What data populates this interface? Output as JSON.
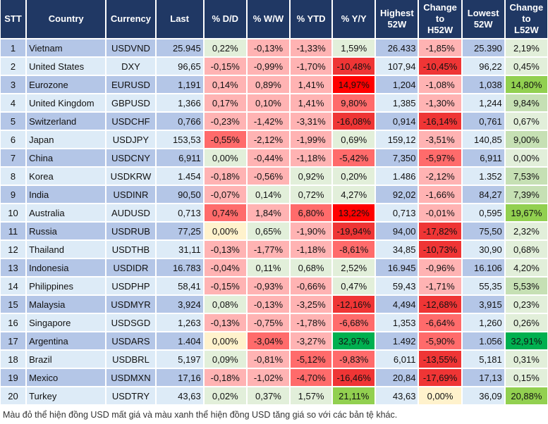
{
  "headers": [
    "STT",
    "Country",
    "Currency",
    "Last",
    "% D/D",
    "% W/W",
    "% YTD",
    "% Y/Y",
    "Highest\n52W",
    "Change\nto\nH52W",
    "Lowest\n52W",
    "Change\nto\nL52W"
  ],
  "colors": {
    "g1": "#e2efda",
    "g2": "#c6e0b4",
    "g3": "#92d050",
    "g4": "#00b050",
    "r1": "#ffb3b3",
    "r2": "#ff6b6b",
    "r3": "#ef3535",
    "r4": "#ff0000",
    "y": "#fff2cc",
    "header": "#203864"
  },
  "rows": [
    {
      "stt": "1",
      "country": "Vietnam",
      "currency": "USDVND",
      "last": "25.945",
      "dd": [
        "0,22%",
        "g1"
      ],
      "ww": [
        "-0,13%",
        "r1"
      ],
      "ytd": [
        "-1,33%",
        "r1"
      ],
      "yy": [
        "1,59%",
        "g1"
      ],
      "high": "26.433",
      "ch": [
        "-1,85%",
        "r1"
      ],
      "low": "25.390",
      "cl": [
        "2,19%",
        "g1"
      ]
    },
    {
      "stt": "2",
      "country": "United States",
      "currency": "DXY",
      "last": "96,65",
      "dd": [
        "-0,15%",
        "r1"
      ],
      "ww": [
        "-0,99%",
        "r1"
      ],
      "ytd": [
        "-1,70%",
        "r1"
      ],
      "yy": [
        "-10,48%",
        "r3"
      ],
      "high": "107,94",
      "ch": [
        "-10,45%",
        "r3"
      ],
      "low": "96,22",
      "cl": [
        "0,45%",
        "g1"
      ]
    },
    {
      "stt": "3",
      "country": "Eurozone",
      "currency": "EURUSD",
      "last": "1,191",
      "dd": [
        "0,14%",
        "r1"
      ],
      "ww": [
        "0,89%",
        "r1"
      ],
      "ytd": [
        "1,41%",
        "r1"
      ],
      "yy": [
        "14,97%",
        "r4"
      ],
      "high": "1,204",
      "ch": [
        "-1,08%",
        "r1"
      ],
      "low": "1,038",
      "cl": [
        "14,80%",
        "g3"
      ]
    },
    {
      "stt": "4",
      "country": "United Kingdom",
      "currency": "GBPUSD",
      "last": "1,366",
      "dd": [
        "0,17%",
        "r1"
      ],
      "ww": [
        "0,10%",
        "r1"
      ],
      "ytd": [
        "1,41%",
        "r1"
      ],
      "yy": [
        "9,80%",
        "r2"
      ],
      "high": "1,385",
      "ch": [
        "-1,30%",
        "r1"
      ],
      "low": "1,244",
      "cl": [
        "9,84%",
        "g2"
      ]
    },
    {
      "stt": "5",
      "country": "Switzerland",
      "currency": "USDCHF",
      "last": "0,766",
      "dd": [
        "-0,23%",
        "r1"
      ],
      "ww": [
        "-1,42%",
        "r1"
      ],
      "ytd": [
        "-3,31%",
        "r1"
      ],
      "yy": [
        "-16,08%",
        "r3"
      ],
      "high": "0,914",
      "ch": [
        "-16,14%",
        "r3"
      ],
      "low": "0,761",
      "cl": [
        "0,67%",
        "g1"
      ]
    },
    {
      "stt": "6",
      "country": "Japan",
      "currency": "USDJPY",
      "last": "153,53",
      "dd": [
        "-0,55%",
        "r2"
      ],
      "ww": [
        "-2,12%",
        "r1"
      ],
      "ytd": [
        "-1,99%",
        "r1"
      ],
      "yy": [
        "0,69%",
        "g1"
      ],
      "high": "159,12",
      "ch": [
        "-3,51%",
        "r1"
      ],
      "low": "140,85",
      "cl": [
        "9,00%",
        "g2"
      ]
    },
    {
      "stt": "7",
      "country": "China",
      "currency": "USDCNY",
      "last": "6,911",
      "dd": [
        "0,00%",
        "g1"
      ],
      "ww": [
        "-0,44%",
        "r1"
      ],
      "ytd": [
        "-1,18%",
        "r1"
      ],
      "yy": [
        "-5,42%",
        "r2"
      ],
      "high": "7,350",
      "ch": [
        "-5,97%",
        "r2"
      ],
      "low": "6,911",
      "cl": [
        "0,00%",
        "g1"
      ]
    },
    {
      "stt": "8",
      "country": "Korea",
      "currency": "USDKRW",
      "last": "1.454",
      "dd": [
        "-0,18%",
        "r1"
      ],
      "ww": [
        "-0,56%",
        "r1"
      ],
      "ytd": [
        "0,92%",
        "g1"
      ],
      "yy": [
        "0,20%",
        "g1"
      ],
      "high": "1.486",
      "ch": [
        "-2,12%",
        "r1"
      ],
      "low": "1.352",
      "cl": [
        "7,53%",
        "g2"
      ]
    },
    {
      "stt": "9",
      "country": "India",
      "currency": "USDINR",
      "last": "90,50",
      "dd": [
        "-0,07%",
        "r1"
      ],
      "ww": [
        "0,14%",
        "g1"
      ],
      "ytd": [
        "0,72%",
        "g1"
      ],
      "yy": [
        "4,27%",
        "g1"
      ],
      "high": "92,02",
      "ch": [
        "-1,66%",
        "r1"
      ],
      "low": "84,27",
      "cl": [
        "7,39%",
        "g2"
      ]
    },
    {
      "stt": "10",
      "country": "Australia",
      "currency": "AUDUSD",
      "last": "0,713",
      "dd": [
        "0,74%",
        "r2"
      ],
      "ww": [
        "1,84%",
        "r1"
      ],
      "ytd": [
        "6,80%",
        "r2"
      ],
      "yy": [
        "13,22%",
        "r4"
      ],
      "high": "0,713",
      "ch": [
        "-0,01%",
        "r1"
      ],
      "low": "0,595",
      "cl": [
        "19,67%",
        "g3"
      ]
    },
    {
      "stt": "11",
      "country": "Russia",
      "currency": "USDRUB",
      "last": "77,25",
      "dd": [
        "0,00%",
        "y"
      ],
      "ww": [
        "0,65%",
        "g1"
      ],
      "ytd": [
        "-1,90%",
        "r1"
      ],
      "yy": [
        "-19,94%",
        "r3"
      ],
      "high": "94,00",
      "ch": [
        "-17,82%",
        "r3"
      ],
      "low": "75,50",
      "cl": [
        "2,32%",
        "g1"
      ]
    },
    {
      "stt": "12",
      "country": "Thailand",
      "currency": "USDTHB",
      "last": "31,11",
      "dd": [
        "-0,13%",
        "r1"
      ],
      "ww": [
        "-1,77%",
        "r1"
      ],
      "ytd": [
        "-1,18%",
        "r1"
      ],
      "yy": [
        "-8,61%",
        "r2"
      ],
      "high": "34,85",
      "ch": [
        "-10,73%",
        "r3"
      ],
      "low": "30,90",
      "cl": [
        "0,68%",
        "g1"
      ]
    },
    {
      "stt": "13",
      "country": "Indonesia",
      "currency": "USDIDR",
      "last": "16.783",
      "dd": [
        "-0,04%",
        "r1"
      ],
      "ww": [
        "0,11%",
        "g1"
      ],
      "ytd": [
        "0,68%",
        "g1"
      ],
      "yy": [
        "2,52%",
        "g1"
      ],
      "high": "16.945",
      "ch": [
        "-0,96%",
        "r1"
      ],
      "low": "16.106",
      "cl": [
        "4,20%",
        "g1"
      ]
    },
    {
      "stt": "14",
      "country": "Philippines",
      "currency": "USDPHP",
      "last": "58,41",
      "dd": [
        "-0,15%",
        "r1"
      ],
      "ww": [
        "-0,93%",
        "r1"
      ],
      "ytd": [
        "-0,66%",
        "r1"
      ],
      "yy": [
        "0,47%",
        "g1"
      ],
      "high": "59,43",
      "ch": [
        "-1,71%",
        "r1"
      ],
      "low": "55,35",
      "cl": [
        "5,53%",
        "g2"
      ]
    },
    {
      "stt": "15",
      "country": "Malaysia",
      "currency": "USDMYR",
      "last": "3,924",
      "dd": [
        "0,08%",
        "g1"
      ],
      "ww": [
        "-0,13%",
        "r1"
      ],
      "ytd": [
        "-3,25%",
        "r1"
      ],
      "yy": [
        "-12,16%",
        "r3"
      ],
      "high": "4,494",
      "ch": [
        "-12,68%",
        "r3"
      ],
      "low": "3,915",
      "cl": [
        "0,23%",
        "g1"
      ]
    },
    {
      "stt": "16",
      "country": "Singapore",
      "currency": "USDSGD",
      "last": "1,263",
      "dd": [
        "-0,13%",
        "r1"
      ],
      "ww": [
        "-0,75%",
        "r1"
      ],
      "ytd": [
        "-1,78%",
        "r1"
      ],
      "yy": [
        "-6,68%",
        "r2"
      ],
      "high": "1,353",
      "ch": [
        "-6,64%",
        "r2"
      ],
      "low": "1,260",
      "cl": [
        "0,26%",
        "g1"
      ]
    },
    {
      "stt": "17",
      "country": "Argentina",
      "currency": "USDARS",
      "last": "1.404",
      "dd": [
        "0,00%",
        "y"
      ],
      "ww": [
        "-3,04%",
        "r2"
      ],
      "ytd": [
        "-3,27%",
        "r1"
      ],
      "yy": [
        "32,97%",
        "g4"
      ],
      "high": "1.492",
      "ch": [
        "-5,90%",
        "r2"
      ],
      "low": "1.056",
      "cl": [
        "32,91%",
        "g4"
      ]
    },
    {
      "stt": "18",
      "country": "Brazil",
      "currency": "USDBRL",
      "last": "5,197",
      "dd": [
        "0,09%",
        "g1"
      ],
      "ww": [
        "-0,81%",
        "r1"
      ],
      "ytd": [
        "-5,12%",
        "r2"
      ],
      "yy": [
        "-9,83%",
        "r2"
      ],
      "high": "6,011",
      "ch": [
        "-13,55%",
        "r3"
      ],
      "low": "5,181",
      "cl": [
        "0,31%",
        "g1"
      ]
    },
    {
      "stt": "19",
      "country": "Mexico",
      "currency": "USDMXN",
      "last": "17,16",
      "dd": [
        "-0,18%",
        "r1"
      ],
      "ww": [
        "-1,02%",
        "r1"
      ],
      "ytd": [
        "-4,70%",
        "r2"
      ],
      "yy": [
        "-16,46%",
        "r3"
      ],
      "high": "20,84",
      "ch": [
        "-17,69%",
        "r3"
      ],
      "low": "17,13",
      "cl": [
        "0,15%",
        "g1"
      ]
    },
    {
      "stt": "20",
      "country": "Turkey",
      "currency": "USDTRY",
      "last": "43,63",
      "dd": [
        "0,02%",
        "g1"
      ],
      "ww": [
        "0,37%",
        "g1"
      ],
      "ytd": [
        "1,57%",
        "g1"
      ],
      "yy": [
        "21,11%",
        "g3"
      ],
      "high": "43,63",
      "ch": [
        "0,00%",
        "y"
      ],
      "low": "36,09",
      "cl": [
        "20,88%",
        "g3"
      ]
    }
  ],
  "note": "Màu đỏ thể hiện đồng USD mất giá và màu xanh thể hiện đồng USD tăng giá so với các bản tệ khác."
}
